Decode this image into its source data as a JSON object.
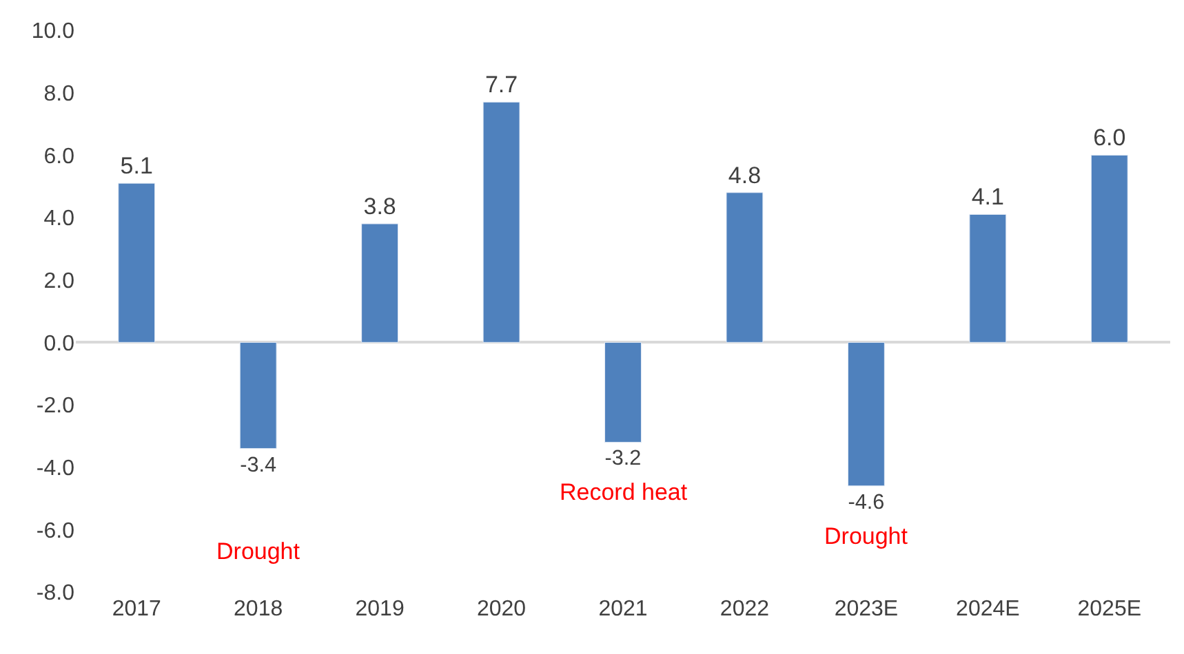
{
  "chart_data": {
    "type": "bar",
    "categories": [
      "2017",
      "2018",
      "2019",
      "2020",
      "2021",
      "2022",
      "2023E",
      "2024E",
      "2025E"
    ],
    "values": [
      5.1,
      -3.4,
      3.8,
      7.7,
      -3.2,
      4.8,
      -4.6,
      4.1,
      6.0
    ],
    "value_labels": [
      "5.1",
      "-3.4",
      "3.8",
      "7.7",
      "-3.2",
      "4.8",
      "-4.6",
      "4.1",
      "6.0"
    ],
    "color": "#4f81bd",
    "ylim": [
      -8,
      10
    ],
    "yticks": [
      {
        "value": -8,
        "label": "-8.0"
      },
      {
        "value": -6,
        "label": "-6.0"
      },
      {
        "value": -4,
        "label": "-4.0"
      },
      {
        "value": -2,
        "label": "-2.0"
      },
      {
        "value": 0,
        "label": "0.0"
      },
      {
        "value": 2,
        "label": "2.0"
      },
      {
        "value": 4,
        "label": "4.0"
      },
      {
        "value": 6,
        "label": "6.0"
      },
      {
        "value": 8,
        "label": "8.0"
      },
      {
        "value": 10,
        "label": "10.0"
      }
    ],
    "annotations": [
      "Drought",
      "Record heat",
      "Drought"
    ]
  }
}
